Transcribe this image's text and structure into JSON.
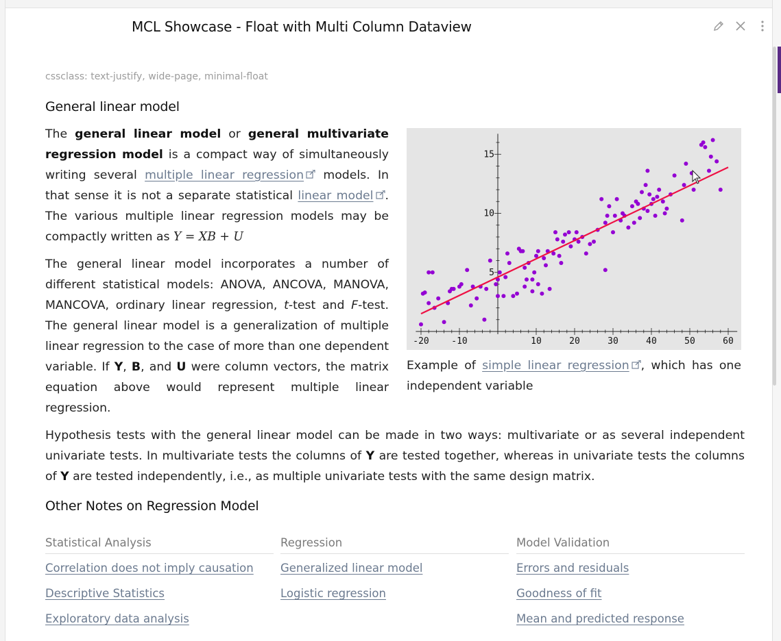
{
  "window": {
    "title": "MCL Showcase - Float with Multi Column Dataview"
  },
  "header_icons": [
    "pencil-icon",
    "close-icon",
    "more-vertical-icon"
  ],
  "frontmatter": "cssclass: text-justify, wide-page, minimal-float",
  "section1": {
    "heading": "General linear model",
    "p1": {
      "s1": "The ",
      "b1": "general linear model",
      "s2": " or ",
      "b2": "general multivariate regression model",
      "s3": " is a compact way of simultaneously writing several ",
      "link1": "multiple linear regression",
      "s4": " models. In that sense it is not a separate statistical ",
      "link2": "linear model",
      "s5": ". The various multiple linear regression models may be compactly written as ",
      "math": "Y = XB + U"
    },
    "p2": {
      "s1": "The general linear model incorporates a number of different statistical models: ANOVA, ANCOVA, MANOVA, MANCOVA, ordinary linear regression, ",
      "t": "t",
      "s2": "-test and ",
      "f": "F",
      "s3": "-test. The general linear model is a generalization of multiple linear regression to the case of more than one dependent variable. If ",
      "Y": "Y",
      "c1": ", ",
      "B": "B",
      "c2": ", and ",
      "U": "U",
      "s4": " were column vectors, the matrix equation above would represent multiple linear regression."
    },
    "p3": {
      "s1": "Hypothesis tests with the general linear model can be made in two ways: multivariate or as several independent univariate tests. In multivariate tests the columns of ",
      "Y1": "Y",
      "s2": " are tested together, whereas in univariate tests the columns of ",
      "Y2": "Y",
      "s3": " are tested independently, i.e., as multiple univariate tests with the same design matrix."
    },
    "caption": {
      "s1": "Example of ",
      "link": "simple linear regression",
      "s2": ", which has one independent variable"
    }
  },
  "section2": {
    "heading": "Other Notes on Regression Model",
    "columns": [
      {
        "header": "Statistical Analysis",
        "links": [
          "Correlation does not imply causation",
          "Descriptive Statistics",
          "Exploratory data analysis"
        ]
      },
      {
        "header": "Regression",
        "links": [
          "Generalized linear model",
          "Logistic regression"
        ]
      },
      {
        "header": "Model Validation",
        "links": [
          "Errors and residuals",
          "Goodness of fit",
          "Mean and predicted response"
        ]
      }
    ]
  },
  "colors": {
    "point": "#9400d3",
    "fit_line": "#ee1144",
    "link": "#6b7a8f",
    "figure_bg": "#e5e5e5"
  },
  "chart_data": {
    "type": "scatter",
    "title": "",
    "xlabel": "",
    "ylabel": "",
    "xlim": [
      -21,
      62
    ],
    "ylim": [
      0,
      16.5
    ],
    "x_ticks": [
      -20,
      -10,
      10,
      20,
      30,
      40,
      50,
      60
    ],
    "x_tick_labels": [
      "-20",
      "-10",
      "10",
      "20",
      "30",
      "40",
      "50",
      "60"
    ],
    "y_ticks": [
      5,
      10,
      15
    ],
    "y_tick_labels": [
      "5",
      "10",
      "15"
    ],
    "grid": false,
    "fit_line": {
      "x": [
        -20,
        60
      ],
      "y": [
        1.5,
        13.9
      ]
    },
    "points": [
      [
        -20,
        0.6
      ],
      [
        -19.5,
        3.2
      ],
      [
        -19,
        3.3
      ],
      [
        -18,
        2.4
      ],
      [
        -18,
        5.0
      ],
      [
        -17,
        5.0
      ],
      [
        -16.5,
        2.0
      ],
      [
        -15.5,
        2.8
      ],
      [
        -14,
        0.8
      ],
      [
        -13,
        2.4
      ],
      [
        -12.5,
        3.4
      ],
      [
        -12,
        3.6
      ],
      [
        -11.5,
        3.6
      ],
      [
        -10,
        3.8
      ],
      [
        -9.5,
        4.0
      ],
      [
        -8,
        5.2
      ],
      [
        -7,
        2.2
      ],
      [
        -6.5,
        3.8
      ],
      [
        -5.5,
        2.8
      ],
      [
        -4.5,
        3.8
      ],
      [
        -3.5,
        1.0
      ],
      [
        -3,
        3.6
      ],
      [
        -2,
        6.0
      ],
      [
        -0.5,
        4.0
      ],
      [
        0,
        4.4
      ],
      [
        0,
        3.0
      ],
      [
        0.5,
        5.0
      ],
      [
        1.5,
        3.0
      ],
      [
        2,
        4.6
      ],
      [
        2.5,
        6.6
      ],
      [
        3,
        5.8
      ],
      [
        4,
        3.0
      ],
      [
        5,
        3.2
      ],
      [
        5.5,
        7.0
      ],
      [
        6,
        6.8
      ],
      [
        6.5,
        6.8
      ],
      [
        7,
        3.8
      ],
      [
        7,
        5.4
      ],
      [
        7.5,
        4.4
      ],
      [
        8,
        5.8
      ],
      [
        9,
        4.4
      ],
      [
        9,
        3.4
      ],
      [
        9.5,
        5.0
      ],
      [
        10,
        6.4
      ],
      [
        10.5,
        4.0
      ],
      [
        10.5,
        6.8
      ],
      [
        11.5,
        3.2
      ],
      [
        12,
        6.2
      ],
      [
        12.5,
        5.6
      ],
      [
        13,
        6.8
      ],
      [
        13.5,
        3.6
      ],
      [
        14.5,
        6.6
      ],
      [
        15,
        8.4
      ],
      [
        15.5,
        7.8
      ],
      [
        16,
        6.4
      ],
      [
        16.5,
        5.8
      ],
      [
        17,
        7.6
      ],
      [
        17.5,
        8.2
      ],
      [
        18.5,
        8.4
      ],
      [
        19,
        7.2
      ],
      [
        20,
        7.8
      ],
      [
        20.5,
        8.4
      ],
      [
        21,
        7.6
      ],
      [
        22,
        8.0
      ],
      [
        23,
        6.6
      ],
      [
        24,
        7.4
      ],
      [
        25,
        7.6
      ],
      [
        26,
        8.6
      ],
      [
        27,
        11.2
      ],
      [
        28,
        5.2
      ],
      [
        28,
        9.2
      ],
      [
        28.5,
        9.8
      ],
      [
        29,
        10.6
      ],
      [
        30,
        8.4
      ],
      [
        30.5,
        9.8
      ],
      [
        31,
        11.2
      ],
      [
        32,
        9.4
      ],
      [
        32.5,
        10.0
      ],
      [
        33,
        9.8
      ],
      [
        34,
        8.8
      ],
      [
        35,
        10.6
      ],
      [
        35.5,
        9.2
      ],
      [
        36,
        11.0
      ],
      [
        36.5,
        10.8
      ],
      [
        37,
        9.6
      ],
      [
        37.5,
        11.8
      ],
      [
        38,
        10.4
      ],
      [
        38.5,
        12.4
      ],
      [
        39,
        13.6
      ],
      [
        39,
        10.2
      ],
      [
        39.5,
        11.6
      ],
      [
        40,
        10.8
      ],
      [
        40.5,
        11.2
      ],
      [
        41,
        9.8
      ],
      [
        41.5,
        11.4
      ],
      [
        42,
        12.0
      ],
      [
        43,
        11.0
      ],
      [
        43.5,
        10.0
      ],
      [
        44,
        10.4
      ],
      [
        45,
        11.6
      ],
      [
        46,
        13.2
      ],
      [
        48,
        9.4
      ],
      [
        48.5,
        12.4
      ],
      [
        49,
        14.2
      ],
      [
        50.5,
        13.4
      ],
      [
        51,
        12.0
      ],
      [
        53,
        15.8
      ],
      [
        53.5,
        16.0
      ],
      [
        54,
        15.6
      ],
      [
        55,
        13.6
      ],
      [
        55.5,
        14.8
      ],
      [
        56,
        16.2
      ],
      [
        57,
        14.4
      ],
      [
        58,
        12.0
      ]
    ]
  }
}
